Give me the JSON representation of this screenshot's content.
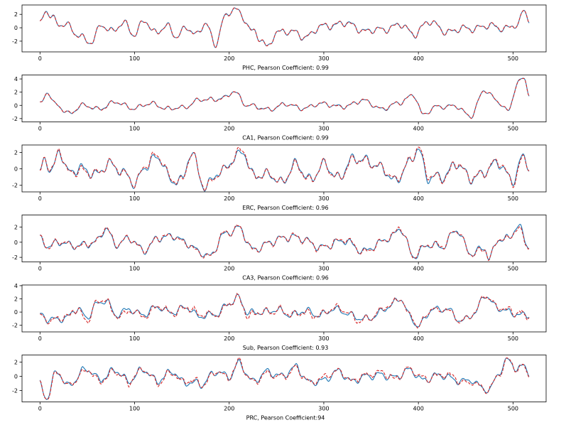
{
  "colors": {
    "actual": "#1f77b4",
    "predicted": "#d62728",
    "axes": "#000000"
  },
  "chart_data": [
    {
      "type": "line",
      "xlabel": "PHC, Pearson Coefficient: 0.99",
      "xlim": [
        -19,
        535
      ],
      "ylim": [
        -3.6,
        3.4
      ],
      "xticks": [
        0,
        100,
        200,
        300,
        400,
        500
      ],
      "yticks": [
        -2,
        0,
        2
      ],
      "xticklabels": [
        "0",
        "100",
        "200",
        "300",
        "400",
        "500"
      ],
      "yticklabels": [
        "-2",
        "0",
        "2"
      ],
      "n_points": 518,
      "shape": {
        "mean": 0.15,
        "amp": 0.9,
        "seed": 11,
        "noise": 0.08,
        "anchors": [
          [
            0,
            0.3
          ],
          [
            6,
            2.8
          ],
          [
            12,
            1.8
          ],
          [
            20,
            0.5
          ],
          [
            30,
            0.2
          ],
          [
            40,
            -1.0
          ],
          [
            55,
            -2.3
          ],
          [
            65,
            0.6
          ],
          [
            75,
            -0.4
          ],
          [
            90,
            0.5
          ],
          [
            100,
            -1.0
          ],
          [
            110,
            1.2
          ],
          [
            120,
            -0.8
          ],
          [
            135,
            0.4
          ],
          [
            145,
            -1.6
          ],
          [
            155,
            0.2
          ],
          [
            165,
            -1.0
          ],
          [
            175,
            0.6
          ],
          [
            185,
            -2.5
          ],
          [
            195,
            1.6
          ],
          [
            205,
            2.8
          ],
          [
            215,
            1.5
          ],
          [
            225,
            -0.5
          ],
          [
            235,
            -2.0
          ],
          [
            240,
            -3.2
          ],
          [
            250,
            -0.5
          ],
          [
            265,
            -0.7
          ],
          [
            280,
            -1.3
          ],
          [
            300,
            0.2
          ],
          [
            320,
            0.7
          ],
          [
            345,
            -0.4
          ],
          [
            360,
            -0.4
          ],
          [
            380,
            0.5
          ],
          [
            395,
            -1.0
          ],
          [
            410,
            0.9
          ],
          [
            430,
            -0.5
          ],
          [
            450,
            -0.2
          ],
          [
            470,
            0.2
          ],
          [
            490,
            0.0
          ],
          [
            505,
            0.3
          ],
          [
            512,
            2.6
          ],
          [
            517,
            1.2
          ]
        ]
      },
      "series": [
        {
          "name": "",
          "role": "actual"
        },
        {
          "name": "",
          "role": "predicted",
          "corr": 0.99
        }
      ]
    },
    {
      "type": "line",
      "xlabel": "CA1, Pearson Coefficient: 0.99",
      "xlim": [
        -19,
        535
      ],
      "ylim": [
        -2.5,
        4.6
      ],
      "xticks": [
        0,
        100,
        200,
        300,
        400,
        500
      ],
      "yticks": [
        -2,
        0,
        2,
        4
      ],
      "xticklabels": [
        "0",
        "100",
        "200",
        "300",
        "400",
        "500"
      ],
      "yticklabels": [
        "-2",
        "0",
        "2",
        "4"
      ],
      "n_points": 518,
      "shape": {
        "mean": 0.1,
        "amp": 0.6,
        "seed": 23,
        "noise": 0.06,
        "anchors": [
          [
            0,
            0.2
          ],
          [
            8,
            2.2
          ],
          [
            15,
            0.2
          ],
          [
            30,
            -1.2
          ],
          [
            45,
            0.0
          ],
          [
            60,
            -0.5
          ],
          [
            80,
            0.4
          ],
          [
            100,
            -0.4
          ],
          [
            120,
            0.3
          ],
          [
            135,
            -0.6
          ],
          [
            150,
            -0.3
          ],
          [
            170,
            0.8
          ],
          [
            195,
            1.1
          ],
          [
            205,
            2.1
          ],
          [
            220,
            0.0
          ],
          [
            240,
            -0.6
          ],
          [
            260,
            0.1
          ],
          [
            280,
            -0.4
          ],
          [
            300,
            0.3
          ],
          [
            320,
            -0.3
          ],
          [
            340,
            0.8
          ],
          [
            360,
            -0.5
          ],
          [
            380,
            0.3
          ],
          [
            395,
            1.7
          ],
          [
            405,
            -1.5
          ],
          [
            420,
            -0.1
          ],
          [
            440,
            -0.2
          ],
          [
            455,
            -1.6
          ],
          [
            470,
            2.2
          ],
          [
            485,
            0.6
          ],
          [
            495,
            -1.0
          ],
          [
            505,
            3.5
          ],
          [
            512,
            4.2
          ],
          [
            517,
            1.8
          ]
        ]
      },
      "series": [
        {
          "name": "",
          "role": "actual"
        },
        {
          "name": "",
          "role": "predicted",
          "corr": 0.99
        }
      ]
    },
    {
      "type": "line",
      "xlabel": "ERC, Pearson Coefficient: 0.96",
      "xlim": [
        -19,
        535
      ],
      "ylim": [
        -2.8,
        2.9
      ],
      "xticks": [
        0,
        100,
        200,
        300,
        400,
        500
      ],
      "yticks": [
        -2,
        0,
        2
      ],
      "xticklabels": [
        "0",
        "100",
        "200",
        "300",
        "400",
        "500"
      ],
      "yticklabels": [
        "-2",
        "0",
        "2"
      ],
      "n_points": 518,
      "shape": {
        "mean": 0.0,
        "amp": 1.1,
        "seed": 37,
        "noise": 0.12,
        "anchors": [
          [
            0,
            -0.5
          ],
          [
            5,
            1.3
          ],
          [
            12,
            -0.5
          ],
          [
            20,
            2.5
          ],
          [
            30,
            -0.6
          ],
          [
            45,
            0.2
          ],
          [
            60,
            -0.8
          ],
          [
            75,
            0.8
          ],
          [
            90,
            -0.7
          ],
          [
            100,
            -2.0
          ],
          [
            110,
            0.3
          ],
          [
            125,
            1.3
          ],
          [
            140,
            -1.3
          ],
          [
            150,
            -1.6
          ],
          [
            160,
            2.0
          ],
          [
            175,
            -2.3
          ],
          [
            190,
            -0.4
          ],
          [
            205,
            1.2
          ],
          [
            215,
            1.9
          ],
          [
            225,
            -0.6
          ],
          [
            240,
            -0.8
          ],
          [
            255,
            -1.5
          ],
          [
            270,
            0.4
          ],
          [
            285,
            -1.2
          ],
          [
            300,
            0.4
          ],
          [
            315,
            -1.0
          ],
          [
            330,
            1.0
          ],
          [
            345,
            1.2
          ],
          [
            360,
            0.0
          ],
          [
            375,
            -1.4
          ],
          [
            390,
            0.5
          ],
          [
            400,
            2.5
          ],
          [
            410,
            -1.0
          ],
          [
            425,
            -1.2
          ],
          [
            440,
            0.8
          ],
          [
            455,
            -1.3
          ],
          [
            470,
            -0.2
          ],
          [
            485,
            0.6
          ],
          [
            500,
            -1.3
          ],
          [
            510,
            1.3
          ],
          [
            517,
            0.3
          ]
        ]
      },
      "series": [
        {
          "name": "",
          "role": "actual"
        },
        {
          "name": "",
          "role": "predicted",
          "corr": 0.96
        }
      ]
    },
    {
      "type": "line",
      "xlabel": "CA3, Pearson Coefficient: 0.96",
      "xlim": [
        -19,
        535
      ],
      "ylim": [
        -2.6,
        3.6
      ],
      "xticks": [
        0,
        100,
        200,
        300,
        400,
        500
      ],
      "yticks": [
        -2,
        0,
        2
      ],
      "xticklabels": [
        "0",
        "100",
        "200",
        "300",
        "400",
        "500"
      ],
      "yticklabels": [
        "-2",
        "0",
        "2"
      ],
      "n_points": 518,
      "shape": {
        "mean": 0.0,
        "amp": 0.9,
        "seed": 53,
        "noise": 0.1,
        "anchors": [
          [
            0,
            0.3
          ],
          [
            8,
            -0.6
          ],
          [
            20,
            0.2
          ],
          [
            35,
            -0.6
          ],
          [
            50,
            -0.1
          ],
          [
            60,
            0.0
          ],
          [
            70,
            1.8
          ],
          [
            80,
            -0.2
          ],
          [
            95,
            0.4
          ],
          [
            110,
            -1.0
          ],
          [
            125,
            0.4
          ],
          [
            140,
            1.0
          ],
          [
            155,
            -0.3
          ],
          [
            170,
            -1.2
          ],
          [
            180,
            -2.0
          ],
          [
            195,
            1.2
          ],
          [
            210,
            1.8
          ],
          [
            225,
            -0.9
          ],
          [
            240,
            -0.3
          ],
          [
            260,
            0.8
          ],
          [
            280,
            0.3
          ],
          [
            300,
            -0.8
          ],
          [
            320,
            0.4
          ],
          [
            340,
            -1.2
          ],
          [
            355,
            -0.4
          ],
          [
            370,
            0.5
          ],
          [
            380,
            2.0
          ],
          [
            395,
            -2.0
          ],
          [
            410,
            -0.2
          ],
          [
            425,
            -0.8
          ],
          [
            440,
            1.8
          ],
          [
            455,
            -1.6
          ],
          [
            470,
            -0.6
          ],
          [
            475,
            -2.2
          ],
          [
            485,
            0.3
          ],
          [
            495,
            0.6
          ],
          [
            505,
            2.2
          ],
          [
            517,
            -0.8
          ]
        ]
      },
      "series": [
        {
          "name": "",
          "role": "actual"
        },
        {
          "name": "",
          "role": "predicted",
          "corr": 0.96
        }
      ]
    },
    {
      "type": "line",
      "xlabel": "Sub, Pearson Coefficient: 0.93",
      "xlim": [
        -19,
        535
      ],
      "ylim": [
        -3.0,
        4.1
      ],
      "xticks": [
        0,
        100,
        200,
        300,
        400,
        500
      ],
      "yticks": [
        -2,
        0,
        2,
        4
      ],
      "xticklabels": [
        "0",
        "100",
        "200",
        "300",
        "400",
        "500"
      ],
      "yticklabels": [
        "-2",
        "0",
        "2",
        "4"
      ],
      "n_points": 518,
      "shape": {
        "mean": 0.0,
        "amp": 0.9,
        "seed": 71,
        "noise": 0.12,
        "anchors": [
          [
            0,
            -0.4
          ],
          [
            10,
            -1.0
          ],
          [
            25,
            -1.2
          ],
          [
            40,
            0.7
          ],
          [
            50,
            -1.0
          ],
          [
            60,
            1.2
          ],
          [
            70,
            2.0
          ],
          [
            80,
            -0.6
          ],
          [
            95,
            0.5
          ],
          [
            110,
            -0.5
          ],
          [
            125,
            0.9
          ],
          [
            140,
            -0.2
          ],
          [
            155,
            0.8
          ],
          [
            170,
            -0.8
          ],
          [
            185,
            -0.3
          ],
          [
            200,
            1.2
          ],
          [
            210,
            2.1
          ],
          [
            220,
            0.0
          ],
          [
            235,
            -0.2
          ],
          [
            250,
            0.5
          ],
          [
            265,
            -0.6
          ],
          [
            280,
            0.4
          ],
          [
            295,
            -0.7
          ],
          [
            310,
            0.6
          ],
          [
            330,
            -0.6
          ],
          [
            350,
            -1.0
          ],
          [
            370,
            1.0
          ],
          [
            380,
            2.0
          ],
          [
            392,
            -0.8
          ],
          [
            400,
            -2.0
          ],
          [
            415,
            0.3
          ],
          [
            430,
            0.6
          ],
          [
            445,
            -1.5
          ],
          [
            460,
            0.0
          ],
          [
            470,
            2.5
          ],
          [
            480,
            1.0
          ],
          [
            495,
            0.1
          ],
          [
            505,
            -0.6
          ],
          [
            517,
            -0.2
          ]
        ]
      },
      "series": [
        {
          "name": "",
          "role": "actual"
        },
        {
          "name": "",
          "role": "predicted",
          "corr": 0.93
        }
      ]
    },
    {
      "type": "line",
      "xlabel": "PRC, Pearson Coefficient:94",
      "xlim": [
        -19,
        535
      ],
      "ylim": [
        -3.6,
        3.0
      ],
      "xticks": [
        0,
        100,
        200,
        300,
        400,
        500
      ],
      "yticks": [
        -2,
        0,
        2
      ],
      "xticklabels": [
        "0",
        "100",
        "200",
        "300",
        "400",
        "500"
      ],
      "yticklabels": [
        "-2",
        "0",
        "2"
      ],
      "n_points": 518,
      "shape": {
        "mean": 0.0,
        "amp": 0.9,
        "seed": 89,
        "noise": 0.16,
        "anchors": [
          [
            0,
            -1.0
          ],
          [
            7,
            -3.1
          ],
          [
            18,
            0.6
          ],
          [
            30,
            -1.2
          ],
          [
            50,
            1.0
          ],
          [
            65,
            -0.4
          ],
          [
            80,
            0.8
          ],
          [
            95,
            -0.6
          ],
          [
            110,
            0.9
          ],
          [
            125,
            -0.6
          ],
          [
            140,
            0.6
          ],
          [
            155,
            -0.9
          ],
          [
            170,
            -1.2
          ],
          [
            185,
            0.7
          ],
          [
            200,
            -0.2
          ],
          [
            210,
            2.0
          ],
          [
            225,
            -0.9
          ],
          [
            240,
            0.8
          ],
          [
            255,
            -0.2
          ],
          [
            270,
            1.5
          ],
          [
            285,
            -1.0
          ],
          [
            300,
            -0.4
          ],
          [
            315,
            0.6
          ],
          [
            330,
            -0.6
          ],
          [
            345,
            -0.1
          ],
          [
            360,
            0.4
          ],
          [
            375,
            -0.4
          ],
          [
            390,
            1.1
          ],
          [
            405,
            -0.7
          ],
          [
            420,
            0.3
          ],
          [
            440,
            -0.6
          ],
          [
            455,
            -0.4
          ],
          [
            465,
            -1.6
          ],
          [
            475,
            -1.9
          ],
          [
            485,
            0.6
          ],
          [
            495,
            2.1
          ],
          [
            505,
            1.0
          ],
          [
            512,
            1.7
          ],
          [
            517,
            0.5
          ]
        ]
      },
      "series": [
        {
          "name": "",
          "role": "actual"
        },
        {
          "name": "",
          "role": "predicted",
          "corr": 0.94
        }
      ]
    }
  ]
}
